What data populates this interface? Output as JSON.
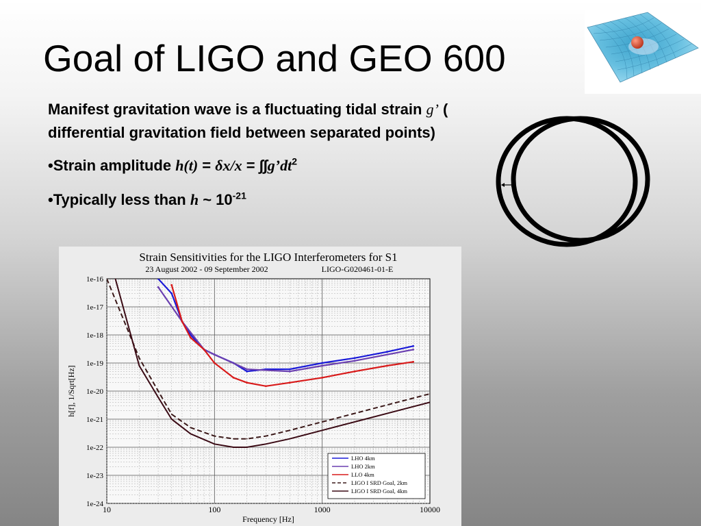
{
  "slide": {
    "title": "Goal of LIGO and GEO 600",
    "intro": {
      "part1": "Manifest gravitation wave is a fluctuating tidal strain ",
      "g_symbol": "g’",
      "part2": " ( differential gravitation field between separated points)"
    },
    "bullet1": {
      "label": "•Strain amplitude ",
      "h_expr": "h(t)",
      "eq1": " = ",
      "dx_expr": "δx/x",
      "eq2": " = ∫∫",
      "g_expr": "g’dt",
      "exp": "2"
    },
    "bullet2": {
      "label": "•Typically less than ",
      "h_expr": "h",
      "approx": " ~ 10",
      "exp": "-21"
    },
    "icons": [
      "spacetime-membrane-icon",
      "ring-deformation-icon",
      "double-arrow-icon"
    ]
  },
  "chart": {
    "title": "Strain Sensitivities for the LIGO Interferometers for S1",
    "date_range": "23 August 2002 - 09 September 2002",
    "doc_id": "LIGO-G020461-01-E",
    "xlabel": "Frequency [Hz]",
    "ylabel": "h[f], 1/Sqrt[Hz]",
    "x_ticks": [
      {
        "value": 10,
        "label": "10"
      },
      {
        "value": 100,
        "label": "100"
      },
      {
        "value": 1000,
        "label": "1000"
      },
      {
        "value": 10000,
        "label": "10000"
      }
    ],
    "y_ticks": [
      {
        "exp": -16,
        "label": "1e-16"
      },
      {
        "exp": -17,
        "label": "1e-17"
      },
      {
        "exp": -18,
        "label": "1e-18"
      },
      {
        "exp": -19,
        "label": "1e-19"
      },
      {
        "exp": -20,
        "label": "1e-20"
      },
      {
        "exp": -21,
        "label": "1e-21"
      },
      {
        "exp": -22,
        "label": "1e-22"
      },
      {
        "exp": -23,
        "label": "1e-23"
      },
      {
        "exp": -24,
        "label": "1e-24"
      }
    ]
  },
  "chart_data": {
    "type": "line",
    "title": "Strain Sensitivities for the LIGO Interferometers for S1",
    "xlabel": "Frequency [Hz]",
    "ylabel": "h[f], 1/Sqrt[Hz]",
    "x_scale": "log",
    "y_scale": "log",
    "xlim": [
      10,
      10000
    ],
    "ylim": [
      1e-24,
      1e-16
    ],
    "grid": true,
    "legend_position": "bottom-right",
    "series": [
      {
        "name": "LHO 4km",
        "color": "#1a1ad8",
        "style": "solid",
        "x": [
          30,
          40,
          50,
          60,
          80,
          100,
          150,
          200,
          300,
          500,
          1000,
          2000,
          4000,
          7000
        ],
        "y": [
          1e-16,
          3e-17,
          3e-18,
          1e-18,
          3e-19,
          2e-19,
          1e-19,
          5e-20,
          6e-20,
          6e-20,
          1e-19,
          1.5e-19,
          2.5e-19,
          4e-19
        ]
      },
      {
        "name": "LHO 2km",
        "color": "#6a3fb0",
        "style": "solid",
        "x": [
          30,
          50,
          80,
          100,
          200,
          500,
          1000,
          2000,
          7000
        ],
        "y": [
          5e-17,
          3e-18,
          3e-19,
          2e-19,
          6e-20,
          5e-20,
          8e-20,
          1.2e-19,
          3e-19
        ]
      },
      {
        "name": "LLO 4km",
        "color": "#d81a1a",
        "style": "solid",
        "x": [
          40,
          50,
          60,
          80,
          100,
          150,
          200,
          300,
          500,
          1000,
          2000,
          4000,
          7000
        ],
        "y": [
          6e-17,
          3e-18,
          8e-19,
          3e-19,
          1e-19,
          3e-20,
          2e-20,
          1.5e-20,
          2e-20,
          3e-20,
          5e-20,
          8e-20,
          1.1e-19
        ]
      },
      {
        "name": "LIGO I SRD Goal, 2km",
        "color": "#3a1818",
        "style": "dashed",
        "x": [
          10,
          20,
          30,
          40,
          60,
          100,
          150,
          200,
          300,
          500,
          1000,
          2000,
          5000,
          10000
        ],
        "y": [
          1e-16,
          1.5e-19,
          1e-20,
          1.5e-21,
          5e-22,
          2.5e-22,
          2e-22,
          2e-22,
          2.5e-22,
          4e-22,
          8e-22,
          1.6e-21,
          4e-21,
          8e-21
        ]
      },
      {
        "name": "LIGO I SRD Goal, 4km",
        "color": "#3a0a14",
        "style": "solid",
        "x": [
          12,
          20,
          30,
          40,
          60,
          100,
          150,
          200,
          300,
          500,
          1000,
          2000,
          5000,
          10000
        ],
        "y": [
          1e-16,
          8e-20,
          6e-21,
          1e-21,
          3e-22,
          1.3e-22,
          1e-22,
          1e-22,
          1.3e-22,
          2e-22,
          4e-22,
          8e-22,
          2e-21,
          4e-21
        ]
      }
    ]
  }
}
